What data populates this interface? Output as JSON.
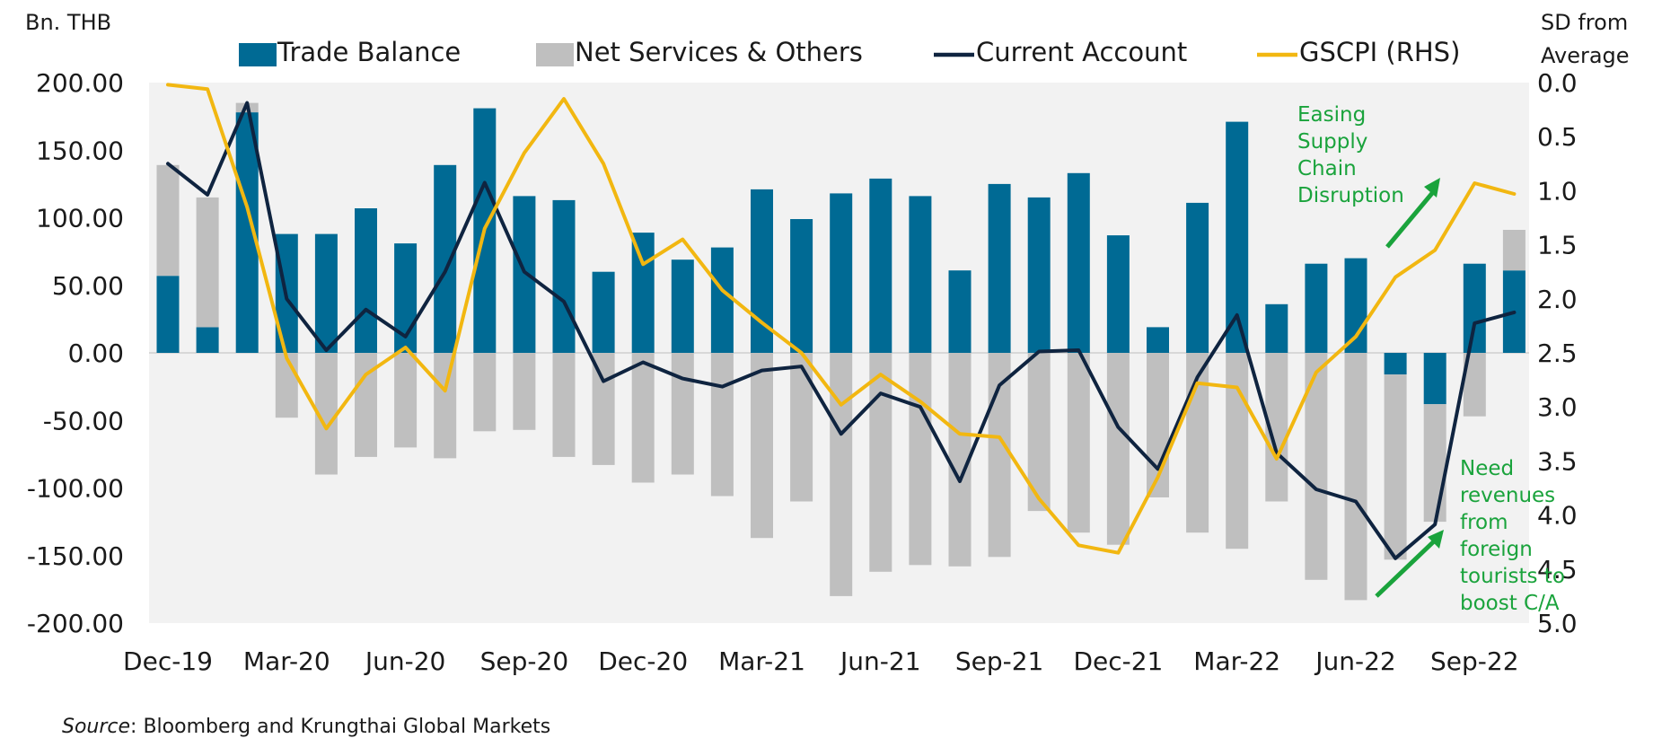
{
  "chart_data": {
    "type": "bar",
    "title": "",
    "y_left_label": "Bn. THB",
    "y_right_label": [
      "SD from",
      "Average"
    ],
    "ylim_left": [
      -200,
      200
    ],
    "ylim_right": [
      0,
      5
    ],
    "right_axis_inverted": true,
    "y_left_ticks": [
      "200.00",
      "150.00",
      "100.00",
      "50.00",
      "0.00",
      "-50.00",
      "-100.00",
      "-150.00",
      "-200.00"
    ],
    "y_left_tick_values": [
      200,
      150,
      100,
      50,
      0,
      -50,
      -100,
      -150,
      -200
    ],
    "y_right_ticks": [
      "0.0",
      "0.5",
      "1.0",
      "1.5",
      "2.0",
      "2.5",
      "3.0",
      "3.5",
      "4.0",
      "4.5",
      "5.0"
    ],
    "y_right_tick_values": [
      0,
      0.5,
      1,
      1.5,
      2,
      2.5,
      3,
      3.5,
      4,
      4.5,
      5
    ],
    "x": [
      "Dec-19",
      "Jan-20",
      "Feb-20",
      "Mar-20",
      "Apr-20",
      "May-20",
      "Jun-20",
      "Jul-20",
      "Aug-20",
      "Sep-20",
      "Oct-20",
      "Nov-20",
      "Dec-20",
      "Jan-21",
      "Feb-21",
      "Mar-21",
      "Apr-21",
      "May-21",
      "Jun-21",
      "Jul-21",
      "Aug-21",
      "Sep-21",
      "Oct-21",
      "Nov-21",
      "Dec-21",
      "Jan-22",
      "Feb-22",
      "Mar-22",
      "Apr-22",
      "May-22",
      "Jun-22",
      "Jul-22",
      "Aug-22",
      "Sep-22",
      "Oct-22"
    ],
    "x_tick_labels": [
      {
        "index": 0,
        "label": "Dec-19"
      },
      {
        "index": 3,
        "label": "Mar-20"
      },
      {
        "index": 6,
        "label": "Jun-20"
      },
      {
        "index": 9,
        "label": "Sep-20"
      },
      {
        "index": 12,
        "label": "Dec-20"
      },
      {
        "index": 15,
        "label": "Mar-21"
      },
      {
        "index": 18,
        "label": "Jun-21"
      },
      {
        "index": 21,
        "label": "Sep-21"
      },
      {
        "index": 24,
        "label": "Dec-21"
      },
      {
        "index": 27,
        "label": "Mar-22"
      },
      {
        "index": 30,
        "label": "Jun-22"
      },
      {
        "index": 33,
        "label": "Sep-22"
      }
    ],
    "series": [
      {
        "name": "Trade Balance",
        "kind": "stacked-bar",
        "color": "#006a94",
        "values": [
          57,
          19,
          178,
          88,
          88,
          107,
          81,
          139,
          181,
          116,
          113,
          60,
          89,
          69,
          78,
          121,
          99,
          118,
          129,
          116,
          61,
          125,
          115,
          133,
          87,
          19,
          111,
          171,
          36,
          66,
          70,
          -16,
          -38,
          66,
          61
        ]
      },
      {
        "name": "Net Services & Others",
        "kind": "stacked-bar",
        "color": "#bfbfbf",
        "values": [
          82,
          96,
          7,
          -48,
          -90,
          -77,
          -70,
          -78,
          -58,
          -57,
          -77,
          -83,
          -96,
          -90,
          -106,
          -137,
          -110,
          -180,
          -162,
          -157,
          -158,
          -151,
          -117,
          -133,
          -142,
          -107,
          -133,
          -145,
          -110,
          -168,
          -183,
          -137,
          -87,
          -47,
          30
        ]
      },
      {
        "name": "Current Account",
        "kind": "line",
        "axis": "left",
        "color": "#0f2440",
        "values": [
          140,
          117,
          185,
          40,
          2,
          32,
          12,
          60,
          126,
          60,
          38,
          -21,
          -7,
          -19,
          -25,
          -13,
          -10,
          -60,
          -30,
          -40,
          -95,
          -24,
          1,
          2,
          -55,
          -86,
          -18,
          28,
          -74,
          -101,
          -110,
          -152,
          -127,
          22,
          30
        ]
      },
      {
        "name": "GSCPI (RHS)",
        "kind": "line",
        "axis": "right",
        "color": "#f2b711",
        "values": [
          0.02,
          0.06,
          1.15,
          2.55,
          3.2,
          2.7,
          2.45,
          2.85,
          1.35,
          0.65,
          0.15,
          0.75,
          1.68,
          1.45,
          1.92,
          2.22,
          2.5,
          2.98,
          2.7,
          2.95,
          3.25,
          3.28,
          3.85,
          4.28,
          4.35,
          3.65,
          2.78,
          2.82,
          3.48,
          2.68,
          2.35,
          1.8,
          1.55,
          0.93,
          1.03
        ]
      }
    ],
    "legend_position": "top",
    "grid": false,
    "annotations": [
      {
        "lines": [
          "Easing",
          "Supply",
          "Chain",
          "Disruption"
        ],
        "color": "#1aa33c"
      },
      {
        "lines": [
          "Need",
          "revenues",
          "from",
          "foreign",
          "tourists to",
          "boost C/A"
        ],
        "color": "#1aa33c"
      }
    ],
    "source": {
      "italic": "Source",
      "rest": ": Bloomberg and Krungthai Global Markets"
    }
  }
}
